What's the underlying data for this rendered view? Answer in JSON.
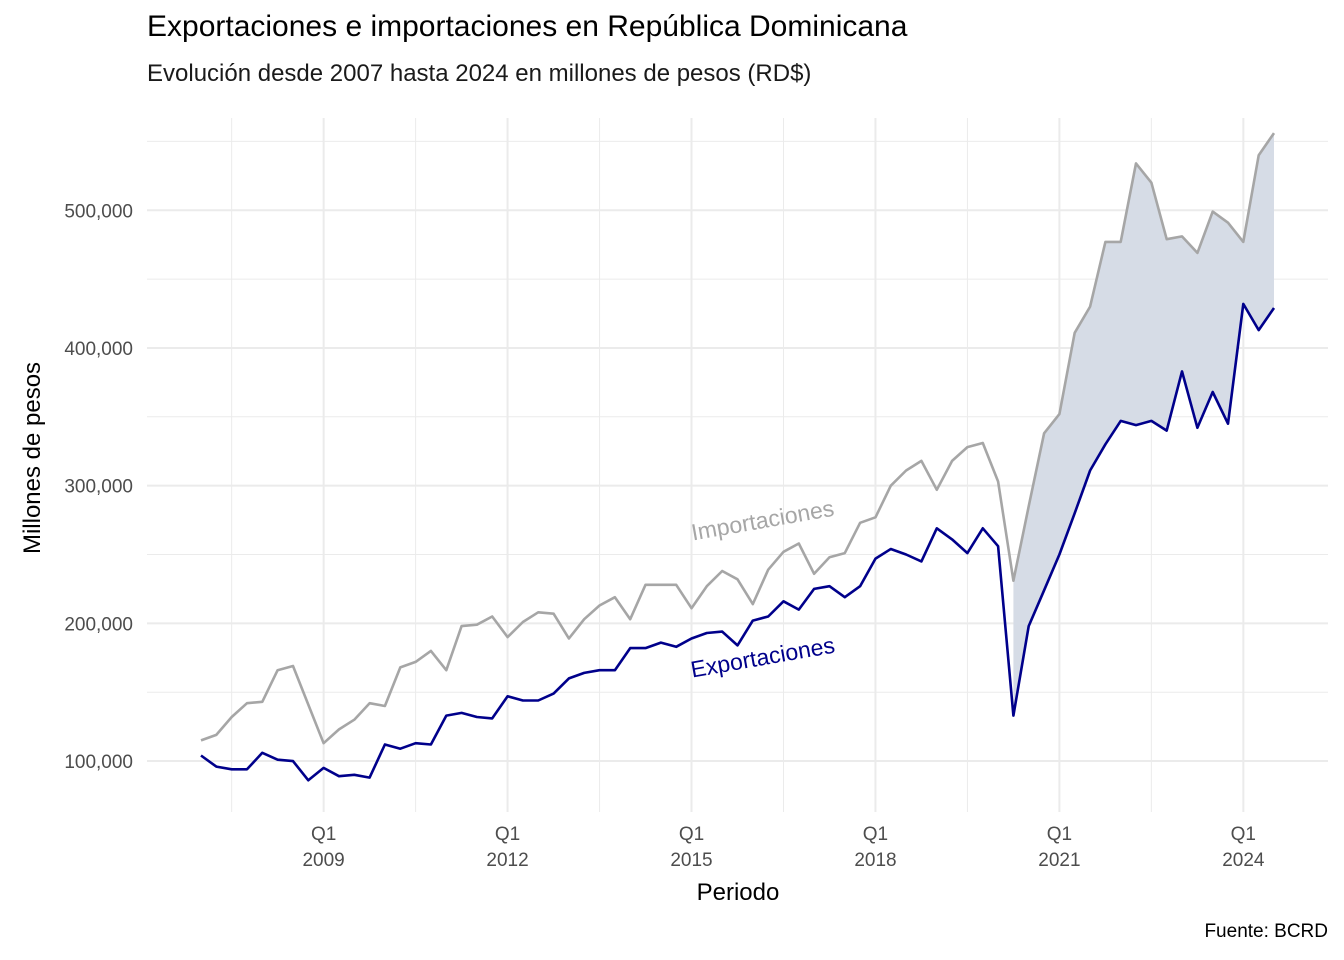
{
  "title": "Exportaciones e importaciones en República Dominicana",
  "subtitle": "Evolución desde 2007 hasta 2024 en millones de pesos (RD$)",
  "caption": "Fuente: BCRD",
  "colors": {
    "exportaciones": "#00008B",
    "importaciones": "#A6A6A6",
    "gap_fill": "#D6DCE6",
    "grid": "#EBEBEB"
  },
  "chart_data": {
    "type": "line",
    "xlabel": "Periodo",
    "ylabel": "Millones de pesos",
    "y_ticks": [
      {
        "value": 100000,
        "label": "100,000"
      },
      {
        "value": 200000,
        "label": "200,000"
      },
      {
        "value": 300000,
        "label": "300,000"
      },
      {
        "value": 400000,
        "label": "400,000"
      },
      {
        "value": 500000,
        "label": "500,000"
      }
    ],
    "x_ticks": [
      {
        "period": "2009 Q1",
        "line1": "Q1",
        "line2": "2009"
      },
      {
        "period": "2012 Q1",
        "line1": "Q1",
        "line2": "2012"
      },
      {
        "period": "2015 Q1",
        "line1": "Q1",
        "line2": "2015"
      },
      {
        "period": "2018 Q1",
        "line1": "Q1",
        "line2": "2018"
      },
      {
        "period": "2021 Q1",
        "line1": "Q1",
        "line2": "2021"
      },
      {
        "period": "2024 Q1",
        "line1": "Q1",
        "line2": "2024"
      }
    ],
    "ylim": [
      63000,
      567000
    ],
    "grid": true,
    "shaded_area": {
      "between": [
        "Importaciones",
        "Exportaciones"
      ],
      "from_period": "2020 Q2"
    },
    "periods": [
      "2007 Q1",
      "2007 Q2",
      "2007 Q3",
      "2007 Q4",
      "2008 Q1",
      "2008 Q2",
      "2008 Q3",
      "2008 Q4",
      "2009 Q1",
      "2009 Q2",
      "2009 Q3",
      "2009 Q4",
      "2010 Q1",
      "2010 Q2",
      "2010 Q3",
      "2010 Q4",
      "2011 Q1",
      "2011 Q2",
      "2011 Q3",
      "2011 Q4",
      "2012 Q1",
      "2012 Q2",
      "2012 Q3",
      "2012 Q4",
      "2013 Q1",
      "2013 Q2",
      "2013 Q3",
      "2013 Q4",
      "2014 Q1",
      "2014 Q2",
      "2014 Q3",
      "2014 Q4",
      "2015 Q1",
      "2015 Q2",
      "2015 Q3",
      "2015 Q4",
      "2016 Q1",
      "2016 Q2",
      "2016 Q3",
      "2016 Q4",
      "2017 Q1",
      "2017 Q2",
      "2017 Q3",
      "2017 Q4",
      "2018 Q1",
      "2018 Q2",
      "2018 Q3",
      "2018 Q4",
      "2019 Q1",
      "2019 Q2",
      "2019 Q3",
      "2019 Q4",
      "2020 Q1",
      "2020 Q2",
      "2020 Q3",
      "2020 Q4",
      "2021 Q1",
      "2021 Q2",
      "2021 Q3",
      "2021 Q4",
      "2022 Q1",
      "2022 Q2",
      "2022 Q3",
      "2022 Q4",
      "2023 Q1",
      "2023 Q2",
      "2023 Q3",
      "2023 Q4",
      "2024 Q1",
      "2024 Q2",
      "2024 Q3"
    ],
    "series": [
      {
        "name": "Importaciones",
        "label_text": "Importaciones",
        "values": [
          115000,
          119000,
          132000,
          142000,
          143000,
          166000,
          169000,
          141000,
          113000,
          123000,
          130000,
          142000,
          140000,
          168000,
          172000,
          180000,
          166000,
          198000,
          199000,
          205000,
          190000,
          201000,
          208000,
          207000,
          189000,
          203000,
          213000,
          219000,
          203000,
          228000,
          228000,
          228000,
          211000,
          227000,
          238000,
          232000,
          214000,
          239000,
          252000,
          258000,
          236000,
          248000,
          251000,
          273000,
          277000,
          300000,
          311000,
          318000,
          297000,
          318000,
          328000,
          331000,
          303000,
          231000,
          285000,
          338000,
          352000,
          411000,
          430000,
          477000,
          477000,
          534000,
          520000,
          479000,
          481000,
          469000,
          499000,
          491000,
          477000,
          540000,
          556000
        ]
      },
      {
        "name": "Exportaciones",
        "label_text": "Exportaciones",
        "values": [
          104000,
          96000,
          94000,
          94000,
          106000,
          101000,
          100000,
          86000,
          95000,
          89000,
          90000,
          88000,
          112000,
          109000,
          113000,
          112000,
          133000,
          135000,
          132000,
          131000,
          147000,
          144000,
          144000,
          149000,
          160000,
          164000,
          166000,
          166000,
          182000,
          182000,
          186000,
          183000,
          189000,
          193000,
          194000,
          184000,
          202000,
          205000,
          216000,
          210000,
          225000,
          227000,
          219000,
          227000,
          247000,
          254000,
          250000,
          245000,
          269000,
          261000,
          251000,
          269000,
          256000,
          133000,
          198000,
          224000,
          250000,
          280000,
          311000,
          330000,
          347000,
          344000,
          347000,
          340000,
          383000,
          342000,
          368000,
          345000,
          432000,
          413000,
          429000
        ]
      }
    ]
  }
}
